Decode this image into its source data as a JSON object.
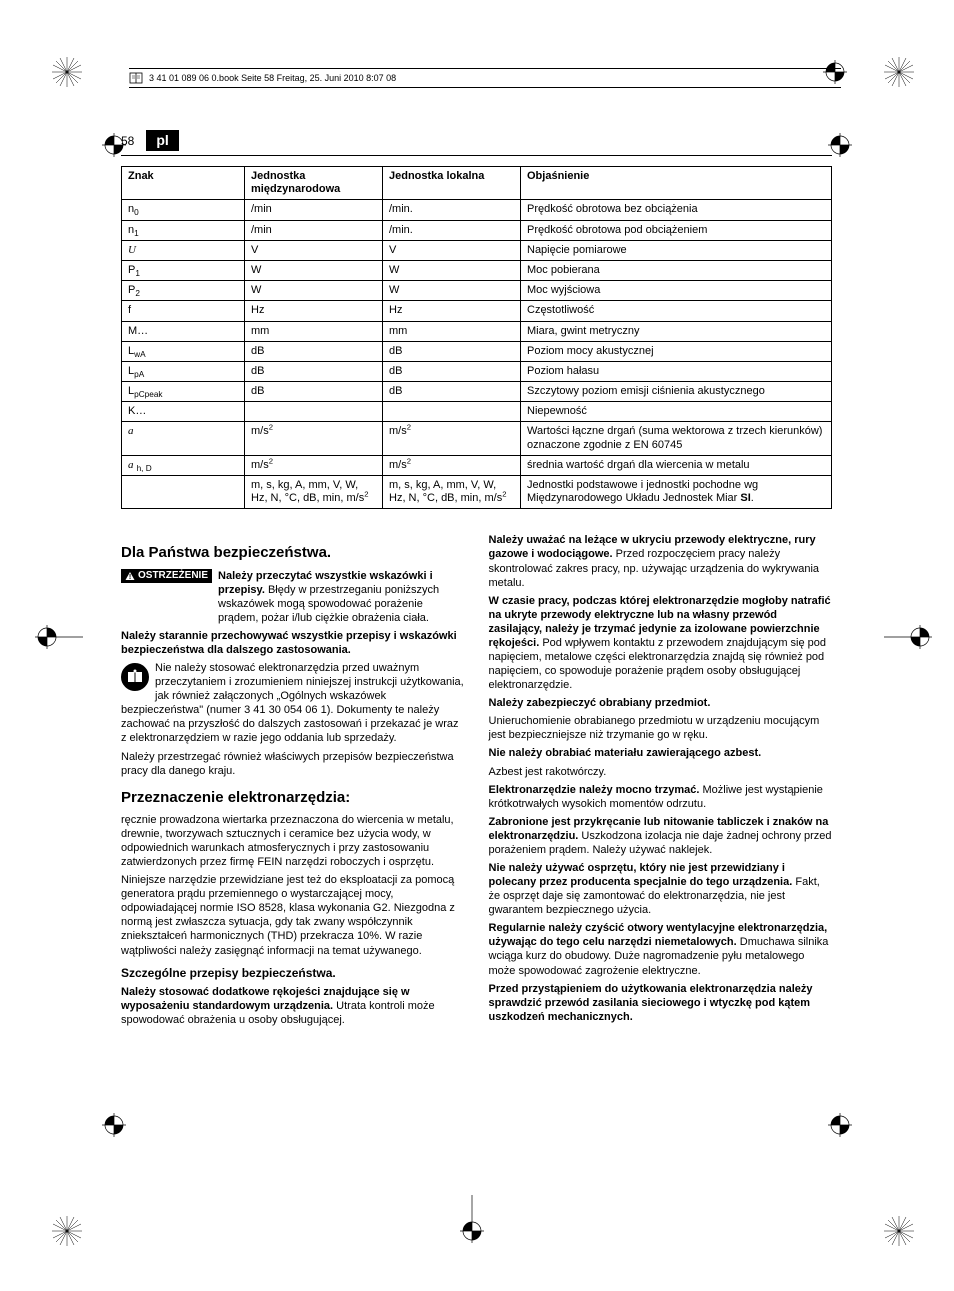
{
  "header": {
    "text": "3 41 01 089 06 0.book  Seite 58  Freitag, 25. Juni 2010  8:07 08"
  },
  "page": {
    "number": "58",
    "lang": "pl"
  },
  "table": {
    "headers": [
      "Znak",
      "Jednostka międzynarodowa",
      "Jednostka lokalna",
      "Objaśnienie"
    ],
    "rows": [
      {
        "znak_html": "n<sub>0</sub>",
        "jm": "/min",
        "jl": "/min.",
        "ob": "Prędkość obrotowa bez obciążenia"
      },
      {
        "znak_html": "n<sub>1</sub>",
        "jm": "/min",
        "jl": "/min.",
        "ob": "Prędkość obrotowa pod obciążeniem"
      },
      {
        "znak_html": "<span class=\"italic\">U</span>",
        "jm": "V",
        "jl": "V",
        "ob": "Napięcie pomiarowe"
      },
      {
        "znak_html": "P<sub>1</sub>",
        "jm": "W",
        "jl": "W",
        "ob": "Moc pobierana"
      },
      {
        "znak_html": "P<sub>2</sub>",
        "jm": "W",
        "jl": "W",
        "ob": "Moc wyjściowa"
      },
      {
        "znak_html": "f",
        "jm": "Hz",
        "jl": "Hz",
        "ob": "Częstotliwość"
      },
      {
        "znak_html": "M…",
        "jm": "mm",
        "jl": "mm",
        "ob": "Miara, gwint metryczny"
      },
      {
        "znak_html": "L<sub>wA</sub>",
        "jm": "dB",
        "jl": "dB",
        "ob": "Poziom mocy akustycznej"
      },
      {
        "znak_html": "L<sub>pA</sub>",
        "jm": "dB",
        "jl": "dB",
        "ob": "Poziom hałasu"
      },
      {
        "znak_html": "L<sub>pCpeak</sub>",
        "jm": "dB",
        "jl": "dB",
        "ob": "Szczytowy poziom emisji ciśnienia akustycznego"
      },
      {
        "znak_html": "K…",
        "jm": "",
        "jl": "",
        "ob": "Niepewność"
      },
      {
        "znak_html": "<span class=\"italic\">a</span>",
        "jm_html": "m/s<sup>2</sup>",
        "jl_html": "m/s<sup>2</sup>",
        "ob": "Wartości łączne drgań (suma wektorowa z trzech kierunków) oznaczone zgodnie z EN 60745"
      },
      {
        "znak_html": "<span class=\"italic\">a</span>&nbsp;<sub>h, D</sub>",
        "jm_html": "m/s<sup>2</sup>",
        "jl_html": "m/s<sup>2</sup>",
        "ob": "średnia wartość drgań dla wiercenia w metalu"
      },
      {
        "znak_html": "",
        "jm_html": "m, s, kg, A, mm, V, W, Hz, N, °C, dB, min, m/s<sup>2</sup>",
        "jl_html": "m, s, kg, A, mm, V, W, Hz, N, °C, dB, min, m/s<sup>2</sup>",
        "ob_html": "Jednostki podstawowe i jednostki pochodne wg Międzynarodowego Układu Jednostek Miar <b>SI</b>."
      }
    ]
  },
  "left": {
    "h2": "Dla Państwa bezpieczeństwa.",
    "warn_label": "OSTRZEŻENIE",
    "warn_text_bold": "Należy przeczytać wszystkie wskazówki i przepisy.",
    "warn_text_rest": " Błędy w przestrzeganiu poniższych wskazówek mogą spowodować porażenie prądem, pożar i/lub ciężkie obrażenia ciała.",
    "keep_bold": "Należy starannie przechowywać wszystkie przepisy i wskazówki bezpieczeństwa dla dalszego zastosowania.",
    "manual_p": "Nie należy stosować elektronarzędzia przed uważnym przeczytaniem i zrozumieniem niniejszej instrukcji użytkowania, jak również załączonych „Ogólnych wskazówek bezpieczeństwa\" (numer 3 41 30 054 06 1). Dokumenty te należy zachować na przyszłość do dalszych zastosowań i przekazać je wraz z elektronarzędziem w razie jego oddania lub sprzedaży.",
    "country_p": "Należy przestrzegać również właściwych przepisów bezpieczeństwa pracy dla danego kraju.",
    "h2b": "Przeznaczenie elektronarzędzia:",
    "purpose_p1": "ręcznie prowadzona wiertarka przeznaczona do wiercenia w metalu, drewnie, tworzywach sztucznych i ceramice bez użycia wody, w odpowiednich warunkach atmosferycznych i przy zastosowaniu zatwierdzonych przez firmę FEIN narzędzi roboczych i osprzętu.",
    "purpose_p2": "Niniejsze narzędzie przewidziane jest też do eksploatacji za pomocą generatora prądu przemiennego o wystarczającej mocy, odpowiadającej normie ISO 8528, klasa wykonania G2. Niezgodna z normą jest zwłaszcza sytuacja, gdy tak zwany współczynnik zniekształceń harmonicznych (THD) przekracza 10%. W razie wątpliwości należy zasięgnąć informacji na temat używanego.",
    "h3": "Szczególne przepisy bezpieczeństwa.",
    "spec_bold": "Należy stosować dodatkowe rękojeści znajdujące się w wyposażeniu standardowym urządzenia.",
    "spec_rest": " Utrata kontroli może spowodować obrażenia u osoby obsługującej."
  },
  "right": {
    "p1_bold": "Należy uważać na leżące w ukryciu przewody elektryczne, rury gazowe i wodociągowe.",
    "p1_rest": " Przed rozpoczęciem pracy należy skontrolować zakres pracy, np. używając urządzenia do wykrywania metalu.",
    "p2_bold": "W czasie pracy, podczas której elektronarzędzie mogłoby natrafić na ukryte przewody elektryczne lub na własny przewód zasilający, należy je trzymać jedynie za izolowane powierzchnie rękojeści.",
    "p2_rest": " Pod wpływem kontaktu z przewodem znajdującym się pod napięciem, metalowe części elektronarzędzia znajdą się również pod napięciem, co spowoduje porażenie prądem osoby obsługującej elektronarzędzie.",
    "p3_bold": "Należy zabezpieczyć obrabiany przedmiot.",
    "p3_rest": "Unieruchomienie obrabianego przedmiotu w urządzeniu mocującym jest bezpieczniejsze niż trzymanie go w ręku.",
    "p4_bold": "Nie należy obrabiać materiału zawierającego azbest.",
    "p4_rest": "Azbest jest rakotwórczy.",
    "p5_bold": "Elektronarzędzie należy mocno trzymać.",
    "p5_rest": " Możliwe jest wystąpienie krótkotrwałych wysokich momentów odrzutu.",
    "p6_bold": "Zabronione jest przykręcanie lub nitowanie tabliczek i znaków na elektronarzędziu.",
    "p6_rest": " Uszkodzona izolacja nie daje żadnej ochrony przed porażeniem prądem. Należy używać naklejek.",
    "p7_bold": "Nie należy używać osprzętu, który nie jest przewidziany i polecany przez producenta specjalnie do tego urządzenia.",
    "p7_rest": " Fakt, że osprzęt daje się zamontować do elektronarzędzia, nie jest gwarantem bezpiecznego użycia.",
    "p8_bold": "Regularnie należy czyścić otwory wentylacyjne elektronarzędzia, używając do tego celu narzędzi niemetalowych.",
    "p8_rest": " Dmuchawa silnika wciąga kurz do obudowy. Duże nagromadzenie pyłu metalowego może spowodować zagrożenie elektryczne.",
    "p9_bold": "Przed przystąpieniem do użytkowania elektronarzędzia należy sprawdzić przewód zasilania sieciowego i wtyczkę pod kątem uszkodzeń mechanicznych."
  }
}
